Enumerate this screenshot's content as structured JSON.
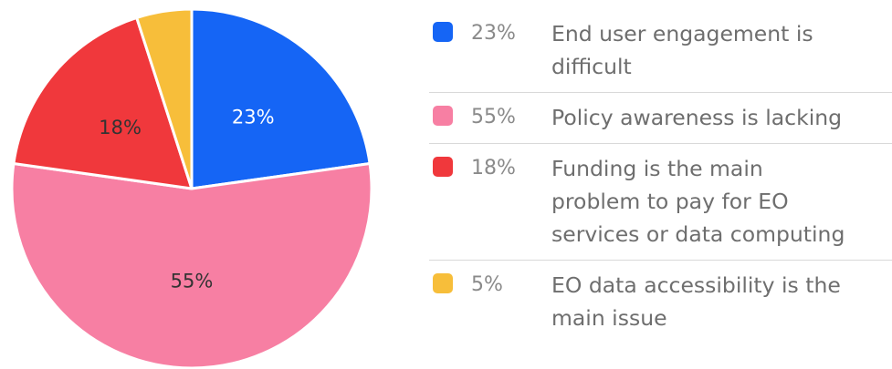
{
  "chart_data": {
    "type": "pie",
    "slices": [
      {
        "label": "End user engagement is difficult",
        "value": 23,
        "value_label": "23%",
        "color": "#1565f5",
        "text_color": "#ffffff"
      },
      {
        "label": "Policy awareness is lacking",
        "value": 55,
        "value_label": "55%",
        "color": "#f77fa3",
        "text_color": "#333333"
      },
      {
        "label": "Funding is the main problem to pay for EO services or data computing",
        "value": 18,
        "value_label": "18%",
        "color": "#f0383c",
        "text_color": "#333333"
      },
      {
        "label": "EO data accessibility is the main issue",
        "value": 5,
        "value_label": "5%",
        "color": "#f7be3a",
        "text_color": "#333333"
      }
    ],
    "legend_position": "right"
  }
}
